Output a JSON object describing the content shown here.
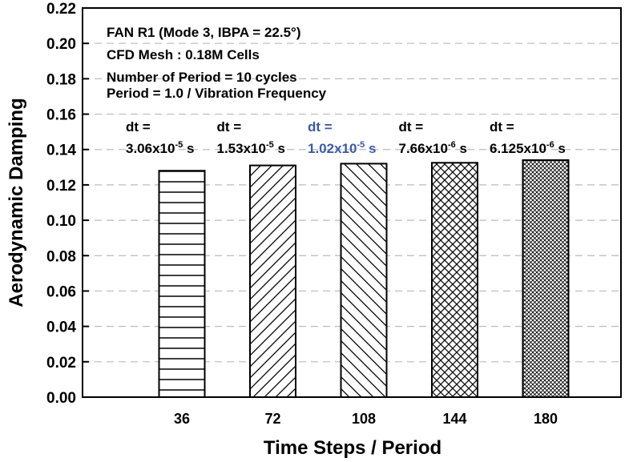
{
  "chart_data": {
    "type": "bar",
    "title": "",
    "xlabel": "Time Steps / Period",
    "ylabel": "Aerodynamic Damping",
    "ylim": [
      0,
      0.22
    ],
    "yticks": [
      "0.00",
      "0.02",
      "0.04",
      "0.06",
      "0.08",
      "0.10",
      "0.12",
      "0.14",
      "0.16",
      "0.18",
      "0.20",
      "0.22"
    ],
    "grid": "horizontal dashed",
    "categories": [
      "36",
      "72",
      "108",
      "144",
      "180"
    ],
    "values": [
      0.128,
      0.131,
      0.132,
      0.1325,
      0.134
    ],
    "patterns": [
      "horizontal-lines",
      "forward-diagonal",
      "backward-diagonal",
      "crosshatch",
      "dense-crosshatch"
    ],
    "annotations": [
      "FAN R1 (Mode 3, IBPA = 22.5°)",
      "CFD Mesh : 0.18M Cells",
      "Number of Period = 10 cycles",
      "Period = 1.0 / Vibration Frequency"
    ],
    "dt_labels": [
      {
        "line1": "dt =",
        "mant": "3.06x10",
        "exp": "-5",
        "unit": " s",
        "color": "#000000"
      },
      {
        "line1": "dt =",
        "mant": "1.53x10",
        "exp": "-5",
        "unit": " s",
        "color": "#000000"
      },
      {
        "line1": "dt =",
        "mant": "1.02x10",
        "exp": "-5",
        "unit": " s",
        "color": "#3a5aa8"
      },
      {
        "line1": "dt =",
        "mant": "7.66x10",
        "exp": "-6",
        "unit": " s",
        "color": "#000000"
      },
      {
        "line1": "dt =",
        "mant": "6.125x10",
        "exp": "-6",
        "unit": " s",
        "color": "#000000"
      }
    ]
  }
}
